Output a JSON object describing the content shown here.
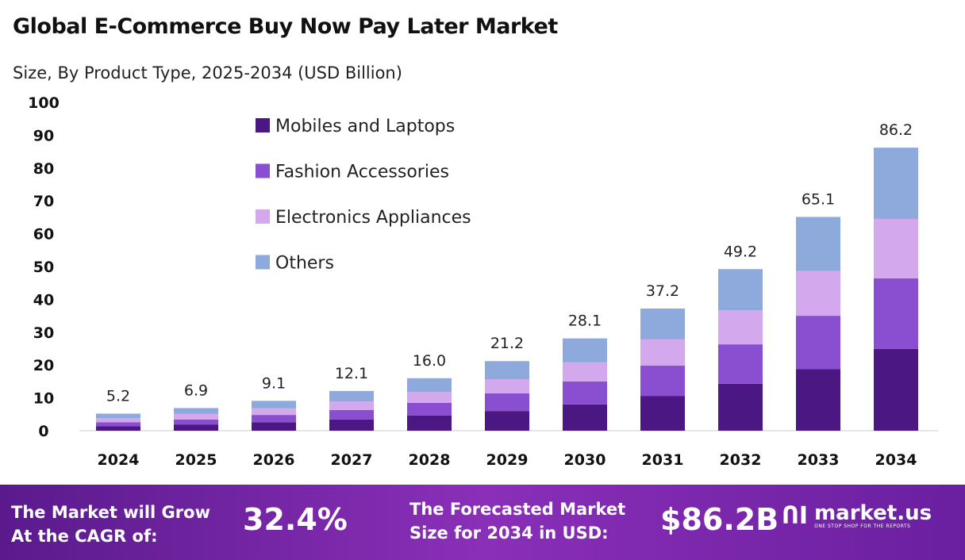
{
  "title": "Global E-Commerce Buy Now Pay Later Market",
  "subtitle": "Size, By Product Type, 2025-2034 (USD Billion)",
  "chart_data": {
    "type": "bar",
    "stacked": true,
    "categories": [
      "2024",
      "2025",
      "2026",
      "2027",
      "2028",
      "2029",
      "2030",
      "2031",
      "2032",
      "2033",
      "2034"
    ],
    "series": [
      {
        "name": "Mobiles and Laptops",
        "color": "#4b1783",
        "values": [
          1.4,
          1.9,
          2.6,
          3.4,
          4.6,
          6.0,
          8.0,
          10.6,
          14.3,
          18.8,
          24.9
        ]
      },
      {
        "name": "Fashion Accessories",
        "color": "#8a4fd0",
        "values": [
          1.2,
          1.5,
          2.2,
          2.9,
          3.9,
          5.4,
          7.0,
          9.2,
          12.0,
          16.2,
          21.5
        ]
      },
      {
        "name": "Electronics Appliances",
        "color": "#d3a8ec",
        "values": [
          1.2,
          1.7,
          2.0,
          2.6,
          3.3,
          4.3,
          5.8,
          8.0,
          10.4,
          13.6,
          18.1
        ]
      },
      {
        "name": "Others",
        "color": "#8eaadd",
        "values": [
          1.4,
          1.8,
          2.3,
          3.2,
          4.2,
          5.5,
          7.3,
          9.4,
          12.5,
          16.5,
          21.7
        ]
      }
    ],
    "totals": [
      "5.2",
      "6.9",
      "9.1",
      "12.1",
      "16.0",
      "21.2",
      "28.1",
      "37.2",
      "49.2",
      "65.1",
      "86.2"
    ],
    "yticks": [
      "0",
      "10",
      "20",
      "30",
      "40",
      "50",
      "60",
      "70",
      "80",
      "90",
      "100"
    ],
    "ylim": [
      0,
      100
    ],
    "grid": false,
    "legend": "top-left"
  },
  "footer": {
    "cagr_label_1": "The Market will Grow",
    "cagr_label_2": "At the CAGR of:",
    "cagr_value": "32.4%",
    "forecast_label_1": "The Forecasted Market",
    "forecast_label_2": "Size for 2034 in USD:",
    "forecast_value": "$86.2B",
    "logo_text": "market.us",
    "logo_tagline": "ONE STOP SHOP FOR THE REPORTS"
  }
}
